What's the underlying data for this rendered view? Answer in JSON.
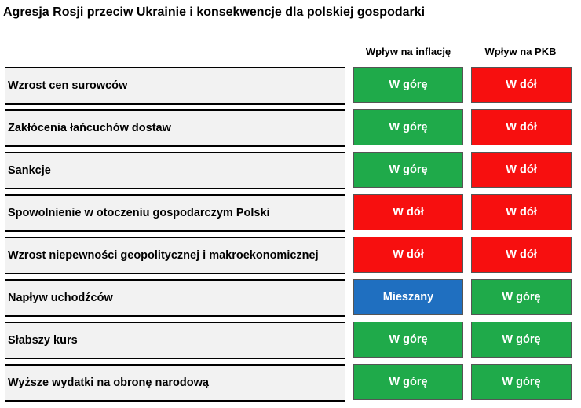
{
  "title": "Agresja Rosji przeciw Ukrainie i konsekwencje dla polskiej gospodarki",
  "columns": {
    "inflation": "Wpływ na inflację",
    "gdp": "Wpływ na PKB"
  },
  "colors": {
    "up": "#1faa4a",
    "down": "#f70f0f",
    "mixed": "#1f6fc0",
    "label_bg": "#f2f2f2"
  },
  "rows": [
    {
      "label": "Wzrost cen surowców",
      "inflation": "W górę",
      "gdp": "W dół"
    },
    {
      "label": "Zakłócenia łańcuchów dostaw",
      "inflation": "W górę",
      "gdp": "W dół"
    },
    {
      "label": "Sankcje",
      "inflation": "W górę",
      "gdp": "W dół"
    },
    {
      "label": "Spowolnienie w otoczeniu gospodarczym Polski",
      "inflation": "W dół",
      "gdp": "W dół"
    },
    {
      "label": "Wzrost niepewności geopolitycznej i makroekonomicznej",
      "inflation": "W dół",
      "gdp": "W dół"
    },
    {
      "label": "Napływ uchodźców",
      "inflation": "Mieszany",
      "gdp": "W górę"
    },
    {
      "label": "Słabszy kurs",
      "inflation": "W górę",
      "gdp": "W górę"
    },
    {
      "label": "Wyższe wydatki na obronę narodową",
      "inflation": "W górę",
      "gdp": "W górę"
    }
  ]
}
